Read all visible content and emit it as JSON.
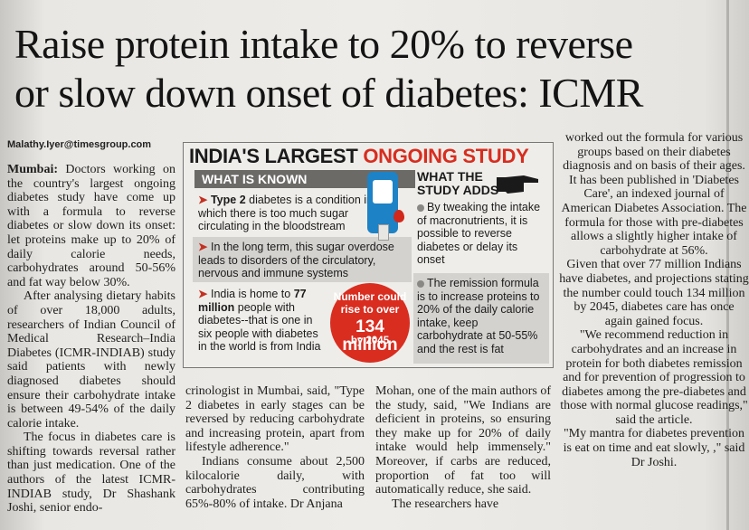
{
  "headline": {
    "line1": "Raise protein intake to 20% to reverse",
    "line2": "or slow down onset of diabetes: ICMR"
  },
  "byline": "Malathy.Iyer@timesgroup.com",
  "box": {
    "title_prefix": "INDIA'S LARGEST",
    "title_accent": "ONGOING STUDY",
    "known_heading": "WHAT IS KNOWN",
    "known_items": [
      {
        "lead": "Type 2",
        "rest": " diabetes is a condition in which there is too much sugar circulating in the bloodstream"
      },
      {
        "lead": "",
        "rest": "In the long term, this sugar overdose leads to disorders of the circulatory, nervous and immune systems"
      },
      {
        "lead_pre": "India is home to ",
        "lead": "77 million",
        "rest": " people with diabetes--that is one in six people with diabetes in the world is from India"
      }
    ],
    "adds_heading": "WHAT THE STUDY ADDS",
    "adds_items": [
      "By tweaking the intake of macronutrients, it is possible to reverse diabetes or delay its onset",
      "The remission formula is to increase proteins to 20% of the daily calorie intake, keep carbohydrate at 50-55% and the rest is fat"
    ],
    "circle": {
      "text1": "Number could rise to over",
      "number": "134 million",
      "text2": "by 2045"
    },
    "icons": [
      "glucose-meter-icon",
      "blood-drop-icon",
      "pointing-hand-icon"
    ],
    "accent_color": "#d72d1f"
  },
  "columns": {
    "col1": {
      "dateline": "Mumbai:",
      "p1": " Doctors working on the country's largest ongoing diabetes study have come up with a formula to reverse diabetes or slow down its onset: let proteins make up to 20% of daily calorie needs, carbohydrates around 50-56% and fat way below 30%.",
      "p2": "After analysing dietary habits of over 18,000 adults, researchers of Indian Council of Medical Research–India Diabetes (ICMR-INDIAB) study said patients with newly diagnosed diabetes should ensure their carbohydrate intake is between 49-54% of the daily calorie intake.",
      "p3": "The focus in diabetes care is shifting towards reversal rather than just medication. One of the authors of the latest ICMR-INDIAB study, Dr Shashank Joshi, senior endo-"
    },
    "col2": {
      "p1": "crinologist in Mumbai, said, \"Type 2 diabetes in early stages can be reversed by reducing carbohydrate and increasing protein, apart from lifestyle adherence.\"",
      "p2": "Indians consume about 2,500 kilocalorie daily, with carbohydrates contributing 65%-80% of intake. Dr Anjana"
    },
    "col3": {
      "p1": "Mohan, one of the main authors of the study, said, \"We Indians are deficient in proteins, so ensuring they make up for 20% of daily intake would help immensely.\" Moreover, if carbs are reduced, proportion of fat too will automatically reduce, she said.",
      "p2": "The researchers have"
    },
    "col4": {
      "p1": "worked out the formula for various groups based on their diabetes diagnosis and on basis of their ages. It has been published in 'Diabetes Care', an indexed journal of American Diabetes Association. The formula for those with pre-diabetes allows a slightly higher intake of carbohydrate at 56%.",
      "p2": "Given that over 77 million Indians have diabetes, and projections stating the number could touch 134 million by 2045, diabetes care has once again gained focus.",
      "p3": "\"We recommend reduction in carbohydrates and an increase in protein for both diabetes remission and for prevention of progression to diabetes among the pre-diabetes and those with normal glucose readings,\" said the article.",
      "p4": "\"My mantra for diabetes prevention is eat on time and eat slowly, ,\" said Dr Joshi."
    }
  }
}
